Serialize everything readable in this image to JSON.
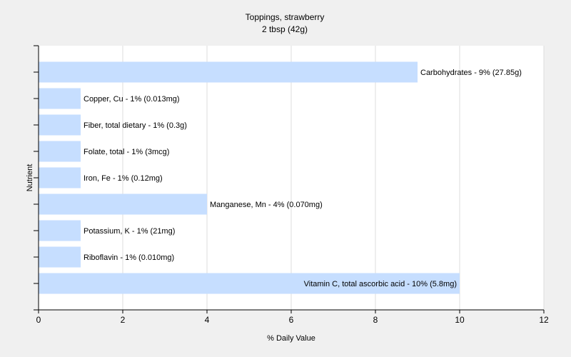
{
  "chart_data": {
    "type": "bar",
    "orientation": "horizontal",
    "title": "Toppings, strawberry",
    "subtitle": "2 tbsp (42g)",
    "xlabel": "% Daily Value",
    "ylabel": "Nutrient",
    "xlim": [
      0,
      12
    ],
    "xticks": [
      0,
      2,
      4,
      6,
      8,
      10,
      12
    ],
    "grid": true,
    "bar_color": "#c6deff",
    "bars": [
      {
        "name": "Carbohydrates",
        "value": 9,
        "label": "Carbohydrates - 9% (27.85g)"
      },
      {
        "name": "Copper, Cu",
        "value": 1,
        "label": "Copper, Cu - 1% (0.013mg)"
      },
      {
        "name": "Fiber, total dietary",
        "value": 1,
        "label": "Fiber, total dietary - 1% (0.3g)"
      },
      {
        "name": "Folate, total",
        "value": 1,
        "label": "Folate, total - 1% (3mcg)"
      },
      {
        "name": "Iron, Fe",
        "value": 1,
        "label": "Iron, Fe - 1% (0.12mg)"
      },
      {
        "name": "Manganese, Mn",
        "value": 4,
        "label": "Manganese, Mn - 4% (0.070mg)"
      },
      {
        "name": "Potassium, K",
        "value": 1,
        "label": "Potassium, K - 1% (21mg)"
      },
      {
        "name": "Riboflavin",
        "value": 1,
        "label": "Riboflavin - 1% (0.010mg)"
      },
      {
        "name": "Vitamin C, total ascorbic acid",
        "value": 10,
        "label": "Vitamin C, total ascorbic acid - 10% (5.8mg)"
      }
    ]
  }
}
